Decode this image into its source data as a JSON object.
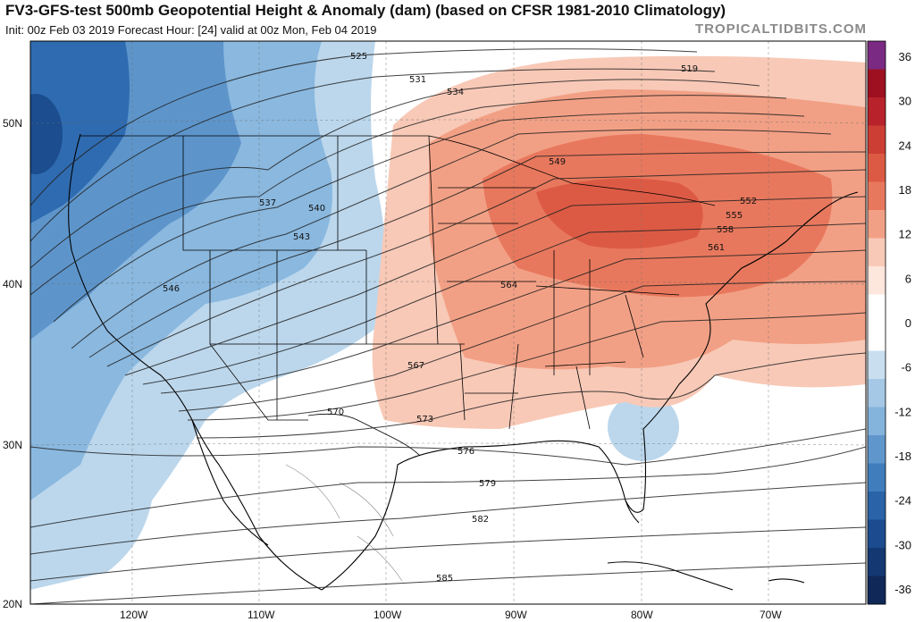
{
  "title": "FV3-GFS-test 500mb Geopotential Height & Anomaly (dam) (based on CFSR 1981-2010 Climatology)",
  "subtitle": "Init: 00z Feb 03 2019   Forecast Hour: [24]   valid at 00z Mon, Feb 04 2019",
  "brand": "TROPICALTIDBITS.COM",
  "colors": {
    "ocean_dark": "#1f5fa6",
    "ridge": "#e8856a",
    "ridge_core": "#d9533d",
    "neutral": "#ffffff"
  },
  "lat_labels": [
    "50N",
    "40N",
    "30N",
    "20N"
  ],
  "lon_labels": [
    "120W",
    "110W",
    "100W",
    "90W",
    "80W",
    "70W"
  ],
  "colorbar": {
    "labels": [
      "36",
      "30",
      "24",
      "18",
      "12",
      "6",
      "0",
      "-6",
      "-12",
      "-18",
      "-24",
      "-30",
      "-36"
    ],
    "colors": [
      "#7b2a83",
      "#9e1020",
      "#b8222a",
      "#cc3e33",
      "#dc5a44",
      "#e8785d",
      "#f2a085",
      "#f8c9b7",
      "#fde6dc",
      "#ffffff",
      "#ffffff",
      "#c9dff0",
      "#a5c8e6",
      "#84b3dc",
      "#5f97cc",
      "#3f7dbd",
      "#2a63a8",
      "#1c4c8f",
      "#143872",
      "#0f2858"
    ]
  },
  "contour_labels": [
    "525",
    "531",
    "534",
    "537",
    "540",
    "543",
    "546",
    "549",
    "519",
    "552",
    "555",
    "558",
    "561",
    "564",
    "567",
    "570",
    "573",
    "576",
    "579",
    "582",
    "585"
  ]
}
